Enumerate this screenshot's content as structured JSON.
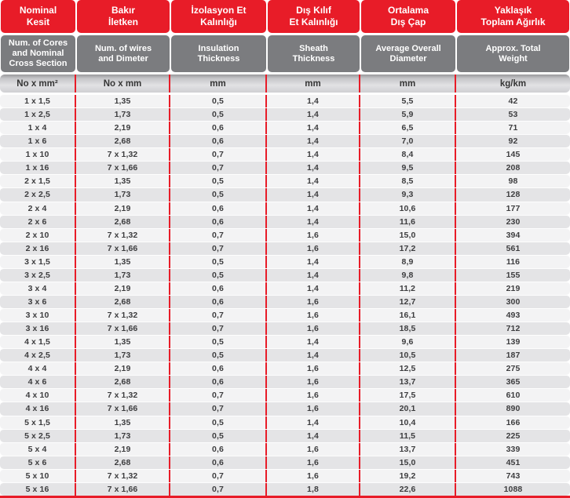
{
  "colors": {
    "red": "#e81c28",
    "header_gray": "#7b7c7f",
    "row_light": "#f3f3f4",
    "row_dark": "#e4e4e6",
    "text_dark": "#3d3d3f"
  },
  "table": {
    "columns": [
      {
        "tr": "Nominal\nKesit",
        "en": "Num. of Cores\nand Nominal\nCross Section",
        "unit": "No x mm²"
      },
      {
        "tr": "Bakır\nİletken",
        "en": "Num. of wires\nand Dimeter",
        "unit": "No x mm"
      },
      {
        "tr": "İzolasyon Et\nKalınlığı",
        "en": "Insulation\nThickness",
        "unit": "mm"
      },
      {
        "tr": "Dış Kılıf\nEt Kalınlığı",
        "en": "Sheath\nThickness",
        "unit": "mm"
      },
      {
        "tr": "Ortalama\nDış Çap",
        "en": "Average Overall\nDiameter",
        "unit": "mm"
      },
      {
        "tr": "Yaklaşık\nToplam Ağırlık",
        "en": "Approx. Total\nWeight",
        "unit": "kg/km"
      }
    ],
    "rows": [
      [
        "1 x 1,5",
        "1,35",
        "0,5",
        "1,4",
        "5,5",
        "42"
      ],
      [
        "1 x 2,5",
        "1,73",
        "0,5",
        "1,4",
        "5,9",
        "53"
      ],
      [
        "1 x 4",
        "2,19",
        "0,6",
        "1,4",
        "6,5",
        "71"
      ],
      [
        "1 x 6",
        "2,68",
        "0,6",
        "1,4",
        "7,0",
        "92"
      ],
      [
        "1 x 10",
        "7 x 1,32",
        "0,7",
        "1,4",
        "8,4",
        "145"
      ],
      [
        "1 x 16",
        "7 x 1,66",
        "0,7",
        "1,4",
        "9,5",
        "208"
      ],
      [
        "2 x 1,5",
        "1,35",
        "0,5",
        "1,4",
        "8,5",
        "98"
      ],
      [
        "2 x 2,5",
        "1,73",
        "0,5",
        "1,4",
        "9,3",
        "128"
      ],
      [
        "2 x 4",
        "2,19",
        "0,6",
        "1,4",
        "10,6",
        "177"
      ],
      [
        "2 x 6",
        "2,68",
        "0,6",
        "1,4",
        "11,6",
        "230"
      ],
      [
        "2 x 10",
        "7 x 1,32",
        "0,7",
        "1,6",
        "15,0",
        "394"
      ],
      [
        "2 x 16",
        "7 x 1,66",
        "0,7",
        "1,6",
        "17,2",
        "561"
      ],
      [
        "3 x 1,5",
        "1,35",
        "0,5",
        "1,4",
        "8,9",
        "116"
      ],
      [
        "3 x 2,5",
        "1,73",
        "0,5",
        "1,4",
        "9,8",
        "155"
      ],
      [
        "3 x 4",
        "2,19",
        "0,6",
        "1,4",
        "11,2",
        "219"
      ],
      [
        "3 x 6",
        "2,68",
        "0,6",
        "1,6",
        "12,7",
        "300"
      ],
      [
        "3 x 10",
        "7 x 1,32",
        "0,7",
        "1,6",
        "16,1",
        "493"
      ],
      [
        "3 x 16",
        "7 x 1,66",
        "0,7",
        "1,6",
        "18,5",
        "712"
      ],
      [
        "4 x 1,5",
        "1,35",
        "0,5",
        "1,4",
        "9,6",
        "139"
      ],
      [
        "4 x 2,5",
        "1,73",
        "0,5",
        "1,4",
        "10,5",
        "187"
      ],
      [
        "4 x 4",
        "2,19",
        "0,6",
        "1,6",
        "12,5",
        "275"
      ],
      [
        "4 x 6",
        "2,68",
        "0,6",
        "1,6",
        "13,7",
        "365"
      ],
      [
        "4 x 10",
        "7 x 1,32",
        "0,7",
        "1,6",
        "17,5",
        "610"
      ],
      [
        "4 x 16",
        "7 x 1,66",
        "0,7",
        "1,6",
        "20,1",
        "890"
      ],
      [
        "5 x 1,5",
        "1,35",
        "0,5",
        "1,4",
        "10,4",
        "166"
      ],
      [
        "5 x 2,5",
        "1,73",
        "0,5",
        "1,4",
        "11,5",
        "225"
      ],
      [
        "5 x 4",
        "2,19",
        "0,6",
        "1,6",
        "13,7",
        "339"
      ],
      [
        "5 x 6",
        "2,68",
        "0,6",
        "1,6",
        "15,0",
        "451"
      ],
      [
        "5 x 10",
        "7 x 1,32",
        "0,7",
        "1,6",
        "19,2",
        "743"
      ],
      [
        "5 x 16",
        "7 x 1,66",
        "0,7",
        "1,8",
        "22,6",
        "1088"
      ]
    ]
  }
}
